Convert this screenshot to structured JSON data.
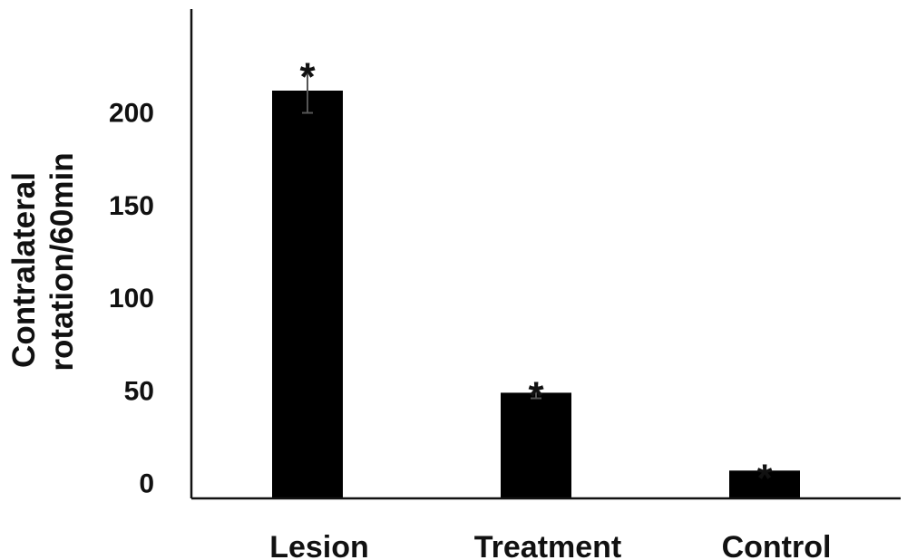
{
  "chart_data": {
    "type": "bar",
    "title": "",
    "ylabel_lines": [
      "Contralateral",
      "rotation/60min"
    ],
    "xlabel": "",
    "categories": [
      "Lesion",
      "Treatment",
      "Control"
    ],
    "values": [
      211,
      48,
      6
    ],
    "error": [
      12,
      3,
      0.5
    ],
    "annotations": [
      "*",
      "*",
      "*"
    ],
    "yticks": [
      0,
      50,
      100,
      150,
      200
    ],
    "ylim": [
      -9,
      255
    ],
    "bar_color": "#000000",
    "axis_color": "#111111",
    "error_bar_color": "#555555",
    "grid": false,
    "legend": "none"
  }
}
